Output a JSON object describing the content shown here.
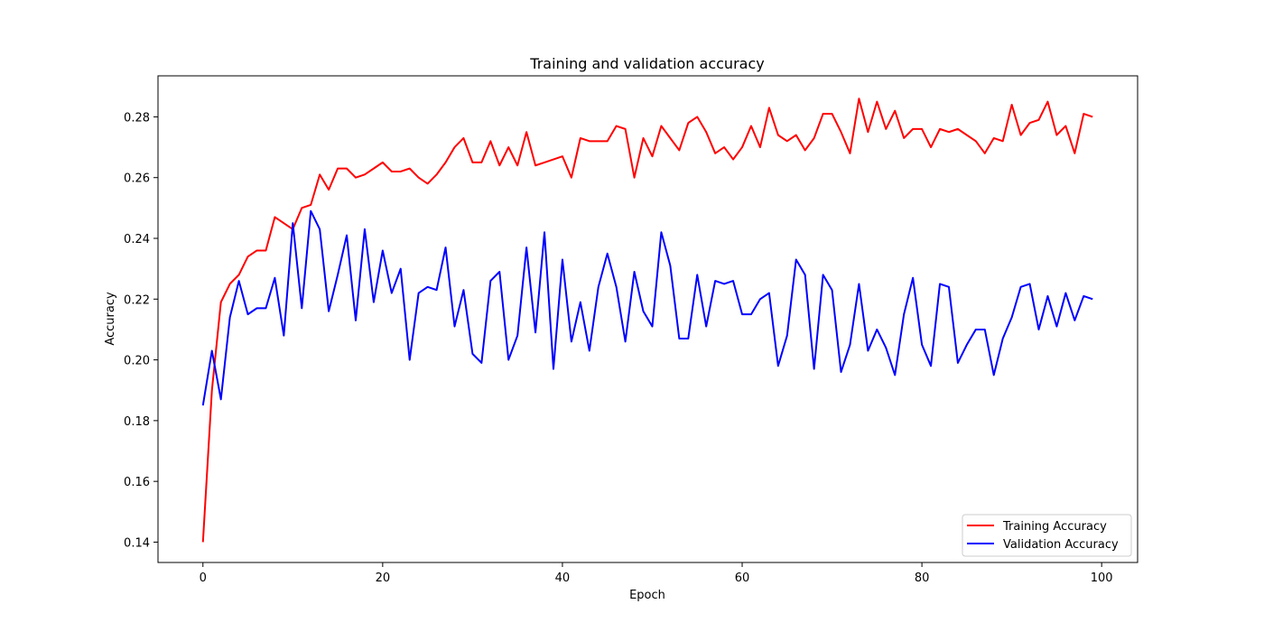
{
  "chart_data": {
    "type": "line",
    "title": "Training and validation accuracy",
    "xlabel": "Epoch",
    "ylabel": "Accuracy",
    "xlim": [
      -5,
      104
    ],
    "ylim": [
      0.1333,
      0.2935
    ],
    "xticks": [
      0,
      20,
      40,
      60,
      80,
      100
    ],
    "yticks": [
      0.14,
      0.16,
      0.18,
      0.2,
      0.22,
      0.24,
      0.26,
      0.28
    ],
    "xtick_labels": [
      "0",
      "20",
      "40",
      "60",
      "80",
      "100"
    ],
    "ytick_labels": [
      "0.14",
      "0.16",
      "0.18",
      "0.20",
      "0.22",
      "0.24",
      "0.26",
      "0.28"
    ],
    "grid": false,
    "legend_position": "lower right",
    "x": [
      0,
      1,
      2,
      3,
      4,
      5,
      6,
      7,
      8,
      9,
      10,
      11,
      12,
      13,
      14,
      15,
      16,
      17,
      18,
      19,
      20,
      21,
      22,
      23,
      24,
      25,
      26,
      27,
      28,
      29,
      30,
      31,
      32,
      33,
      34,
      35,
      36,
      37,
      38,
      39,
      40,
      41,
      42,
      43,
      44,
      45,
      46,
      47,
      48,
      49,
      50,
      51,
      52,
      53,
      54,
      55,
      56,
      57,
      58,
      59,
      60,
      61,
      62,
      63,
      64,
      65,
      66,
      67,
      68,
      69,
      70,
      71,
      72,
      73,
      74,
      75,
      76,
      77,
      78,
      79,
      80,
      81,
      82,
      83,
      84,
      85,
      86,
      87,
      88,
      89,
      90,
      91,
      92,
      93,
      94,
      95,
      96,
      97,
      98,
      99
    ],
    "series": [
      {
        "name": "Training Accuracy",
        "color": "#ff0000",
        "values": [
          0.14,
          0.19,
          0.219,
          0.225,
          0.228,
          0.234,
          0.236,
          0.236,
          0.247,
          0.245,
          0.243,
          0.25,
          0.251,
          0.261,
          0.256,
          0.263,
          0.263,
          0.26,
          0.261,
          0.263,
          0.265,
          0.262,
          0.262,
          0.263,
          0.26,
          0.258,
          0.261,
          0.265,
          0.27,
          0.273,
          0.265,
          0.265,
          0.272,
          0.264,
          0.27,
          0.264,
          0.275,
          0.264,
          0.265,
          0.266,
          0.267,
          0.26,
          0.273,
          0.272,
          0.272,
          0.272,
          0.277,
          0.276,
          0.26,
          0.273,
          0.267,
          0.277,
          0.273,
          0.269,
          0.278,
          0.28,
          0.275,
          0.268,
          0.27,
          0.266,
          0.27,
          0.277,
          0.27,
          0.283,
          0.274,
          0.272,
          0.274,
          0.269,
          0.273,
          0.281,
          0.281,
          0.275,
          0.268,
          0.286,
          0.275,
          0.285,
          0.276,
          0.282,
          0.273,
          0.276,
          0.276,
          0.27,
          0.276,
          0.275,
          0.276,
          0.274,
          0.272,
          0.268,
          0.273,
          0.272,
          0.284,
          0.274,
          0.278,
          0.279,
          0.285,
          0.274,
          0.277,
          0.268,
          0.281,
          0.28
        ]
      },
      {
        "name": "Validation Accuracy",
        "color": "#0000ff",
        "values": [
          0.185,
          0.203,
          0.187,
          0.214,
          0.226,
          0.215,
          0.217,
          0.217,
          0.227,
          0.208,
          0.245,
          0.217,
          0.249,
          0.243,
          0.216,
          0.228,
          0.241,
          0.213,
          0.243,
          0.219,
          0.236,
          0.222,
          0.23,
          0.2,
          0.222,
          0.224,
          0.223,
          0.237,
          0.211,
          0.223,
          0.202,
          0.199,
          0.226,
          0.229,
          0.2,
          0.208,
          0.237,
          0.209,
          0.242,
          0.197,
          0.233,
          0.206,
          0.219,
          0.203,
          0.224,
          0.235,
          0.224,
          0.206,
          0.229,
          0.216,
          0.211,
          0.242,
          0.231,
          0.207,
          0.207,
          0.228,
          0.211,
          0.226,
          0.225,
          0.226,
          0.215,
          0.215,
          0.22,
          0.222,
          0.198,
          0.208,
          0.233,
          0.228,
          0.197,
          0.228,
          0.223,
          0.196,
          0.205,
          0.225,
          0.203,
          0.21,
          0.204,
          0.195,
          0.215,
          0.227,
          0.205,
          0.198,
          0.225,
          0.224,
          0.199,
          0.205,
          0.21,
          0.21,
          0.195,
          0.207,
          0.214,
          0.224,
          0.225,
          0.21,
          0.221,
          0.211,
          0.222,
          0.213,
          0.221,
          0.22
        ]
      }
    ]
  }
}
